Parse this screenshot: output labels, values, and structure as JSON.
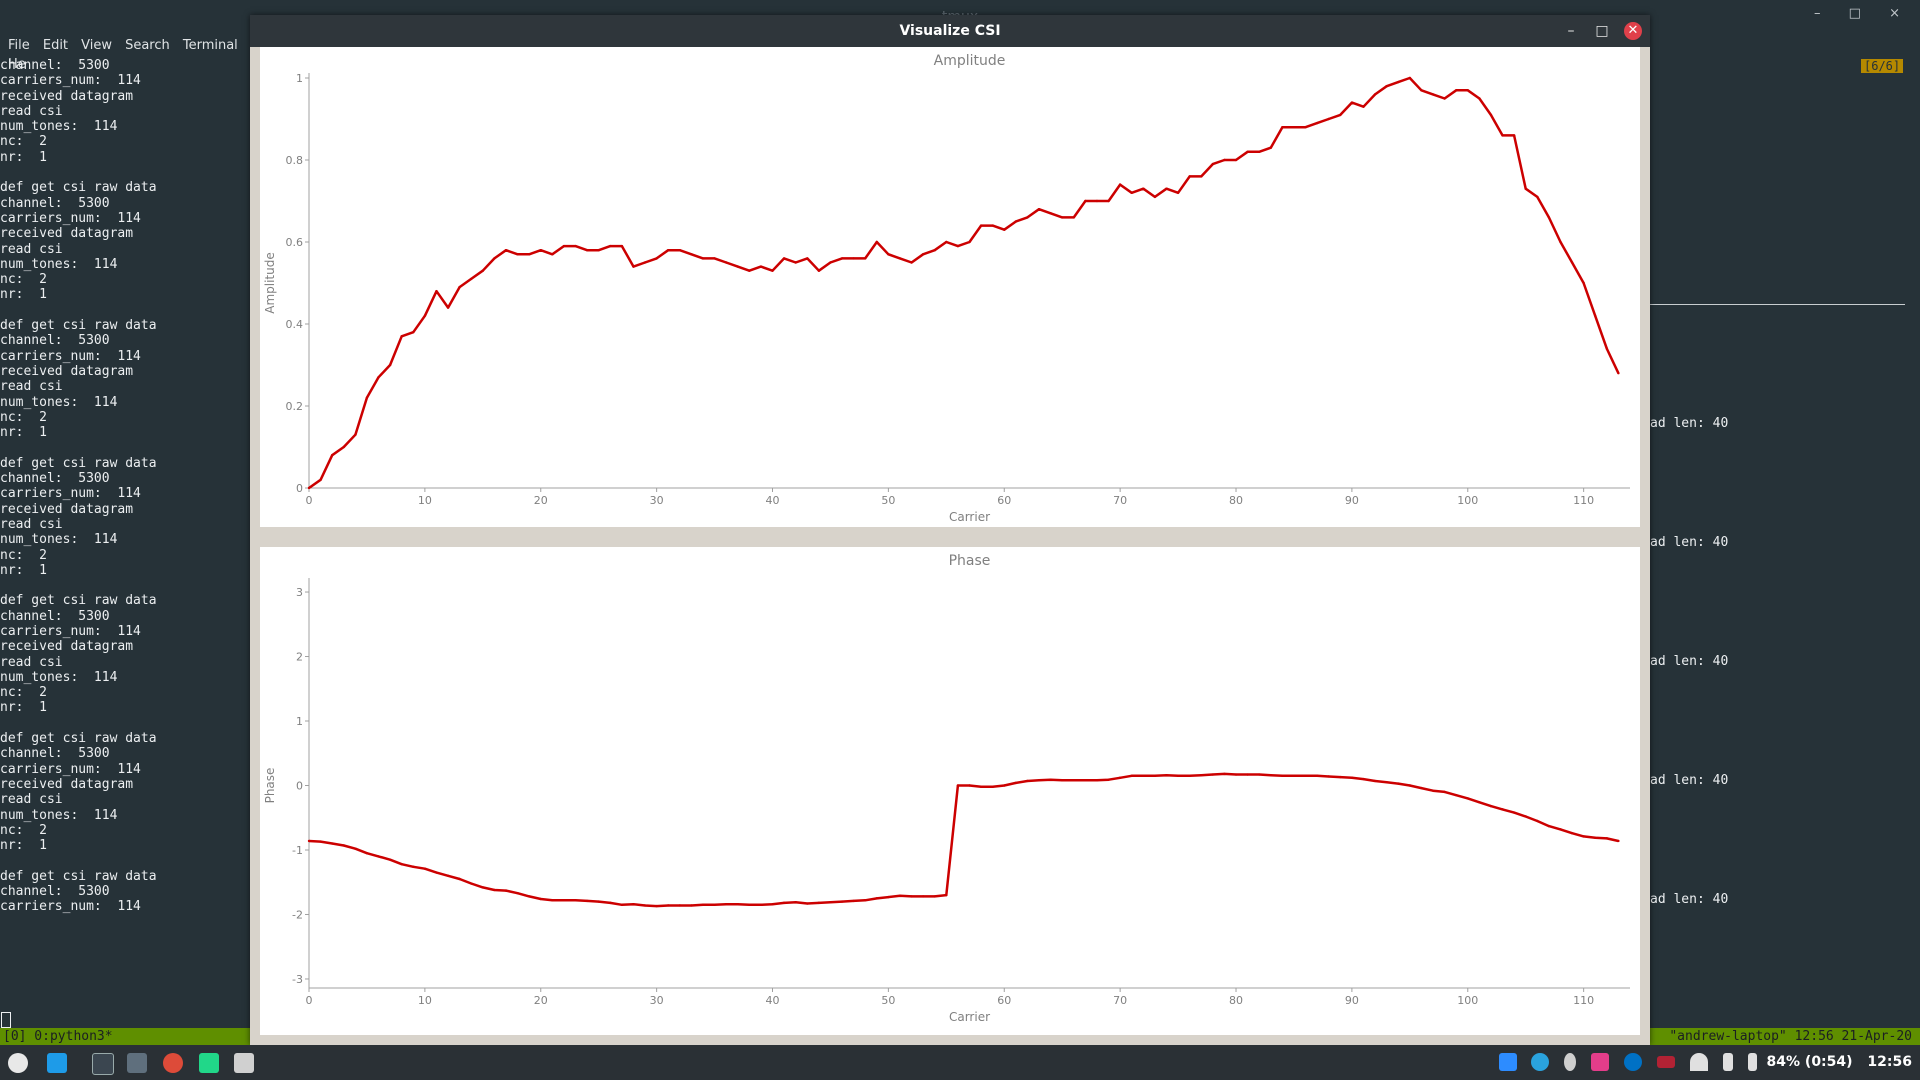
{
  "terminal": {
    "title": "tmux",
    "window_controls": [
      "–",
      "□",
      "×"
    ],
    "menu": [
      "File",
      "Edit",
      "View",
      "Search",
      "Terminal",
      "He"
    ],
    "lines": [
      "channel:  5300",
      "carriers_num:  114",
      "received datagram",
      "read csi",
      "num_tones:  114",
      "nc:  2",
      "nr:  1",
      "",
      "def get csi raw data",
      "channel:  5300",
      "carriers_num:  114",
      "received datagram",
      "read csi",
      "num_tones:  114",
      "nc:  2",
      "nr:  1",
      "",
      "def get csi raw data",
      "channel:  5300",
      "carriers_num:  114",
      "received datagram",
      "read csi",
      "num_tones:  114",
      "nc:  2",
      "nr:  1",
      "",
      "def get csi raw data",
      "channel:  5300",
      "carriers_num:  114",
      "received datagram",
      "read csi",
      "num_tones:  114",
      "nc:  2",
      "nr:  1",
      "",
      "def get csi raw data",
      "channel:  5300",
      "carriers_num:  114",
      "received datagram",
      "read csi",
      "num_tones:  114",
      "nc:  2",
      "nr:  1",
      "",
      "def get csi raw data",
      "channel:  5300",
      "carriers_num:  114",
      "received datagram",
      "read csi",
      "num_tones:  114",
      "nc:  2",
      "nr:  1",
      "",
      "def get csi raw data",
      "channel:  5300",
      "carriers_num:  114"
    ],
    "right_pane_lines": [
      "ad len: 40",
      "ad len: 40",
      "ad len: 40",
      "ad len: 40",
      "ad len: 40"
    ],
    "window_indicator": "[6/6]",
    "status_left": "[0] 0:python3*",
    "status_right": "\"andrew-laptop\" 12:56 21-Apr-20"
  },
  "chart_window": {
    "title": "Visualize CSI",
    "buttons": [
      "–",
      "□",
      "✕"
    ]
  },
  "chart_data": [
    {
      "type": "line",
      "title": "Amplitude",
      "xlabel": "Carrier",
      "ylabel": "Amplitude",
      "xlim": [
        0,
        114
      ],
      "ylim": [
        0,
        1
      ],
      "xticks": [
        0,
        10,
        20,
        30,
        40,
        50,
        60,
        70,
        80,
        90,
        100,
        110
      ],
      "yticks": [
        0,
        0.2,
        0.4,
        0.6,
        0.8,
        1
      ],
      "color": "#cc0000",
      "x": [
        0,
        1,
        2,
        3,
        4,
        5,
        6,
        7,
        8,
        9,
        10,
        11,
        12,
        13,
        14,
        15,
        16,
        17,
        18,
        19,
        20,
        21,
        22,
        23,
        24,
        25,
        26,
        27,
        28,
        29,
        30,
        31,
        32,
        33,
        34,
        35,
        36,
        37,
        38,
        39,
        40,
        41,
        42,
        43,
        44,
        45,
        46,
        47,
        48,
        49,
        50,
        51,
        52,
        53,
        54,
        55,
        56,
        57,
        58,
        59,
        60,
        61,
        62,
        63,
        64,
        65,
        66,
        67,
        68,
        69,
        70,
        71,
        72,
        73,
        74,
        75,
        76,
        77,
        78,
        79,
        80,
        81,
        82,
        83,
        84,
        85,
        86,
        87,
        88,
        89,
        90,
        91,
        92,
        93,
        94,
        95,
        96,
        97,
        98,
        99,
        100,
        101,
        102,
        103,
        104,
        105,
        106,
        107,
        108,
        109,
        110,
        111,
        112,
        113
      ],
      "y": [
        0,
        0.02,
        0.08,
        0.1,
        0.13,
        0.22,
        0.27,
        0.3,
        0.37,
        0.38,
        0.42,
        0.48,
        0.44,
        0.49,
        0.51,
        0.53,
        0.56,
        0.58,
        0.57,
        0.57,
        0.58,
        0.57,
        0.59,
        0.59,
        0.58,
        0.58,
        0.59,
        0.59,
        0.54,
        0.55,
        0.56,
        0.58,
        0.58,
        0.57,
        0.56,
        0.56,
        0.55,
        0.54,
        0.53,
        0.54,
        0.53,
        0.56,
        0.55,
        0.56,
        0.53,
        0.55,
        0.56,
        0.56,
        0.56,
        0.6,
        0.57,
        0.56,
        0.55,
        0.57,
        0.58,
        0.6,
        0.59,
        0.6,
        0.64,
        0.64,
        0.63,
        0.65,
        0.66,
        0.68,
        0.67,
        0.66,
        0.66,
        0.7,
        0.7,
        0.7,
        0.74,
        0.72,
        0.73,
        0.71,
        0.73,
        0.72,
        0.76,
        0.76,
        0.79,
        0.8,
        0.8,
        0.82,
        0.82,
        0.83,
        0.88,
        0.88,
        0.88,
        0.89,
        0.9,
        0.91,
        0.94,
        0.93,
        0.96,
        0.98,
        0.99,
        1.0,
        0.97,
        0.96,
        0.95,
        0.97,
        0.97,
        0.95,
        0.91,
        0.86,
        0.86,
        0.73,
        0.71,
        0.66,
        0.6,
        0.55,
        0.5,
        0.42,
        0.34,
        0.28
      ]
    },
    {
      "type": "line",
      "title": "Phase",
      "xlabel": "Carrier",
      "ylabel": "Phase",
      "xlim": [
        0,
        114
      ],
      "ylim": [
        -3.14,
        3.14
      ],
      "xticks": [
        0,
        10,
        20,
        30,
        40,
        50,
        60,
        70,
        80,
        90,
        100,
        110
      ],
      "yticks": [
        -3,
        -2,
        -1,
        0,
        1,
        2,
        3
      ],
      "color": "#cc0000",
      "x": [
        0,
        1,
        2,
        3,
        4,
        5,
        6,
        7,
        8,
        9,
        10,
        11,
        12,
        13,
        14,
        15,
        16,
        17,
        18,
        19,
        20,
        21,
        22,
        23,
        24,
        25,
        26,
        27,
        28,
        29,
        30,
        31,
        32,
        33,
        34,
        35,
        36,
        37,
        38,
        39,
        40,
        41,
        42,
        43,
        44,
        45,
        46,
        47,
        48,
        49,
        50,
        51,
        52,
        53,
        54,
        55,
        56,
        57,
        58,
        59,
        60,
        61,
        62,
        63,
        64,
        65,
        66,
        67,
        68,
        69,
        70,
        71,
        72,
        73,
        74,
        75,
        76,
        77,
        78,
        79,
        80,
        81,
        82,
        83,
        84,
        85,
        86,
        87,
        88,
        89,
        90,
        91,
        92,
        93,
        94,
        95,
        96,
        97,
        98,
        99,
        100,
        101,
        102,
        103,
        104,
        105,
        106,
        107,
        108,
        109,
        110,
        111,
        112,
        113
      ],
      "y": [
        -0.86,
        -0.87,
        -0.9,
        -0.93,
        -0.98,
        -1.05,
        -1.1,
        -1.15,
        -1.22,
        -1.26,
        -1.29,
        -1.35,
        -1.4,
        -1.45,
        -1.52,
        -1.58,
        -1.62,
        -1.63,
        -1.67,
        -1.72,
        -1.76,
        -1.78,
        -1.78,
        -1.78,
        -1.79,
        -1.8,
        -1.82,
        -1.85,
        -1.84,
        -1.86,
        -1.87,
        -1.86,
        -1.86,
        -1.86,
        -1.85,
        -1.85,
        -1.84,
        -1.84,
        -1.85,
        -1.85,
        -1.84,
        -1.82,
        -1.81,
        -1.83,
        -1.82,
        -1.81,
        -1.8,
        -1.79,
        -1.78,
        -1.75,
        -1.73,
        -1.71,
        -1.72,
        -1.72,
        -1.72,
        -1.7,
        0.0,
        0.0,
        -0.02,
        -0.02,
        0.0,
        0.04,
        0.07,
        0.08,
        0.09,
        0.08,
        0.08,
        0.08,
        0.08,
        0.09,
        0.12,
        0.15,
        0.15,
        0.15,
        0.16,
        0.15,
        0.15,
        0.16,
        0.17,
        0.18,
        0.17,
        0.17,
        0.17,
        0.16,
        0.15,
        0.15,
        0.15,
        0.15,
        0.14,
        0.13,
        0.12,
        0.1,
        0.07,
        0.05,
        0.03,
        0.0,
        -0.04,
        -0.08,
        -0.1,
        -0.15,
        -0.2,
        -0.26,
        -0.32,
        -0.37,
        -0.42,
        -0.48,
        -0.55,
        -0.63,
        -0.68,
        -0.74,
        -0.79,
        -0.81,
        -0.82,
        -0.86
      ]
    }
  ],
  "taskbar": {
    "battery": "84% (0:54)",
    "clock": "12:56"
  }
}
